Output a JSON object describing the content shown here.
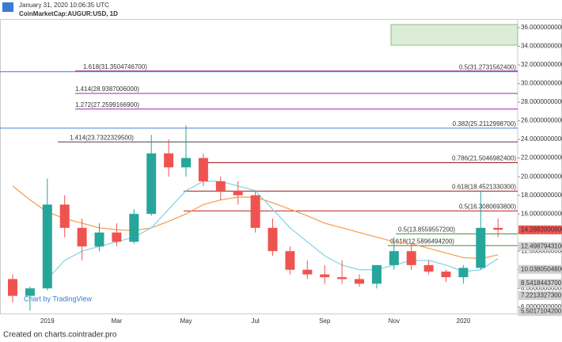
{
  "header": {
    "timestamp": "January 31, 2020 10:06:35 UTC",
    "symbol": "CoinMarketCap:AUGUR:USD, 1D"
  },
  "footer": "Created on charts.cointrader.pro",
  "watermark": "Chart by TradingView",
  "chart_data": {
    "type": "candlestick",
    "categories": [
      null,
      null,
      "2019",
      null,
      null,
      null,
      "Mar",
      null,
      null,
      null,
      "May",
      null,
      null,
      null,
      "Jul",
      null,
      null,
      null,
      "Sep",
      null,
      null,
      null,
      "Nov",
      null,
      null,
      null,
      "2020",
      null,
      null
    ],
    "open": [
      9.0,
      7.2,
      8.0,
      17.0,
      14.5,
      12.5,
      14.0,
      13.0,
      16.0,
      22.5,
      21.0,
      22.0,
      19.5,
      18.5,
      18.0,
      14.5,
      12.0,
      10.0,
      9.5,
      9.2,
      9.0,
      8.5,
      10.5,
      12.0,
      10.5,
      9.8,
      9.2,
      10.2,
      14.5
    ],
    "high": [
      9.5,
      8.2,
      19.8,
      18.0,
      15.5,
      15.0,
      15.0,
      16.5,
      24.5,
      24.0,
      25.5,
      22.5,
      20.0,
      19.5,
      18.5,
      15.5,
      12.5,
      11.0,
      10.5,
      11.0,
      9.5,
      10.5,
      13.5,
      12.8,
      11.0,
      10.0,
      10.5,
      18.5,
      15.5
    ],
    "low": [
      6.5,
      5.6,
      7.8,
      13.5,
      11.0,
      12.0,
      12.5,
      12.8,
      15.8,
      20.0,
      20.0,
      19.0,
      17.5,
      17.0,
      14.0,
      11.5,
      9.5,
      9.0,
      8.5,
      8.5,
      8.2,
      8.0,
      10.0,
      10.0,
      9.5,
      8.7,
      8.5,
      10.0,
      13.5
    ],
    "close": [
      7.2,
      8.0,
      17.0,
      14.5,
      12.5,
      14.0,
      13.0,
      16.0,
      22.5,
      21.0,
      22.0,
      19.5,
      18.5,
      18.0,
      14.5,
      12.0,
      10.0,
      9.5,
      9.2,
      9.0,
      8.5,
      10.5,
      12.0,
      10.5,
      9.8,
      9.2,
      10.2,
      14.5,
      14.3
    ],
    "up_color": "#26a69a",
    "down_color": "#ef5350",
    "series": [
      {
        "color": "#f59a4a",
        "values": [
          19,
          17.5,
          16.2,
          15.5,
          15,
          14.5,
          14.3,
          14.2,
          14.5,
          15.2,
          16,
          17,
          17.5,
          17.8,
          17.8,
          17.2,
          16.5,
          15.8,
          15,
          14.5,
          14,
          13.5,
          13,
          12.8,
          12.3,
          11.8,
          11.3,
          11.2,
          11.6
        ]
      },
      {
        "color": "#7fd3e6",
        "values": [
          null,
          null,
          9,
          11,
          12,
          12.5,
          13,
          13.5,
          14.5,
          16.5,
          18.5,
          19.5,
          19.5,
          19,
          18.5,
          16.5,
          14.5,
          13,
          11.5,
          10.5,
          10,
          10,
          10.5,
          11,
          11,
          10.5,
          9.8,
          10,
          11.2
        ]
      }
    ],
    "ylim": [
      5.3,
      36.85
    ],
    "yticks": [
      {
        "value": 36,
        "label": "36.0000000000"
      },
      {
        "value": 34,
        "label": "34.0000000000"
      },
      {
        "value": 32,
        "label": "32.0000000000"
      },
      {
        "value": 30,
        "label": "30.0000000000"
      },
      {
        "value": 28,
        "label": "28.0000000000"
      },
      {
        "value": 26,
        "label": "26.0000000000"
      },
      {
        "value": 24,
        "label": "24.0000000000"
      },
      {
        "value": 22,
        "label": "22.0000000000"
      },
      {
        "value": 20,
        "label": "20.0000000000"
      },
      {
        "value": 18,
        "label": "18.0000000000"
      },
      {
        "value": 16,
        "label": "16.0000000000"
      },
      {
        "value": 14,
        "label": "14.0000000000"
      },
      {
        "value": 12,
        "label": "12.0000000000"
      },
      {
        "value": 10,
        "label": "10.0000000000"
      },
      {
        "value": 8,
        "label": "8.0000000000"
      },
      {
        "value": 6,
        "label": "6.0000000000"
      }
    ],
    "levels": [
      {
        "value": 31.35047467,
        "label": "1.618(31.3504746700)",
        "color": "#9c27b0"
      },
      {
        "value": 31.27315624,
        "label": "0.5(31.2731562400)",
        "color": "#4a7fd4"
      },
      {
        "value": 28.9387006,
        "label": "1.414(28.9387006000)",
        "color": "#9c27b0"
      },
      {
        "value": 27.25991669,
        "label": "1.272(27.2599166900)",
        "color": "#9c27b0"
      },
      {
        "value": 25.21129987,
        "label": "0.382(25.2112998700)",
        "color": "#4a7fd4"
      },
      {
        "value": 23.73223295,
        "label": "1.414(23.7322329500)",
        "color": "#444444"
      },
      {
        "value": 21.50469824,
        "label": "0.786(21.5046982400)",
        "color": "#a11a1a"
      },
      {
        "value": 18.45213303,
        "label": "0.618(18.4521330300)",
        "color": "#a11a1a"
      },
      {
        "value": 16.30806938,
        "label": "0.5(16.3080693800)",
        "color": "#c62828"
      },
      {
        "value": 13.85595572,
        "label": "0.5(13.8559557200)",
        "color": "#388e3c"
      },
      {
        "value": 12.58964942,
        "label": "0.618(12.5896494200)",
        "color": "#388e3c"
      }
    ],
    "price_labels": [
      {
        "value": 14.28920006,
        "label": "14.2892000600",
        "color": "#ef5350"
      },
      {
        "value": 12.49879431,
        "label": "12.4987943100",
        "color": "#d0d0d0"
      },
      {
        "value": 10.03805048,
        "label": "10.0380504800",
        "color": "#d0d0d0"
      },
      {
        "value": 8.54184437,
        "label": "8.5418443700",
        "color": "#d0d0d0"
      },
      {
        "value": 7.22133273,
        "label": "7.2213327300",
        "color": "#d0d0d0"
      },
      {
        "value": 5.50171042,
        "label": "5.5017104200",
        "color": "#d0d0d0"
      }
    ]
  }
}
